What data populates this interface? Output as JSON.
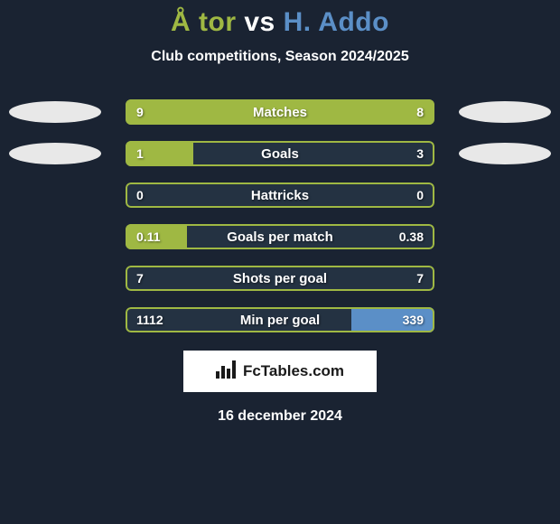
{
  "title": {
    "prefix": "Å tor",
    "prefix_color": "#9fb843",
    "middle": " vs ",
    "middle_color": "#ffffff",
    "suffix": "H. Addo",
    "suffix_color": "#5b8fc7"
  },
  "subtitle": "Club competitions, Season 2024/2025",
  "colors": {
    "left": "#9fb843",
    "right": "#5b8fc7",
    "ellipse": "#e8e8e8",
    "bar_bg": "#243242"
  },
  "rows": [
    {
      "label": "Matches",
      "left_val": "9",
      "right_val": "8",
      "left_fill_pct": 100,
      "right_fill_pct": 0,
      "show_ellipses": true
    },
    {
      "label": "Goals",
      "left_val": "1",
      "right_val": "3",
      "left_fill_pct": 22,
      "right_fill_pct": 0,
      "show_ellipses": true
    },
    {
      "label": "Hattricks",
      "left_val": "0",
      "right_val": "0",
      "left_fill_pct": 0,
      "right_fill_pct": 0,
      "show_ellipses": false
    },
    {
      "label": "Goals per match",
      "left_val": "0.11",
      "right_val": "0.38",
      "left_fill_pct": 20,
      "right_fill_pct": 0,
      "show_ellipses": false
    },
    {
      "label": "Shots per goal",
      "left_val": "7",
      "right_val": "7",
      "left_fill_pct": 0,
      "right_fill_pct": 0,
      "show_ellipses": false
    },
    {
      "label": "Min per goal",
      "left_val": "1112",
      "right_val": "339",
      "left_fill_pct": 0,
      "right_fill_pct": 27,
      "show_ellipses": false
    }
  ],
  "logo_text": "FcTables.com",
  "date": "16 december 2024"
}
